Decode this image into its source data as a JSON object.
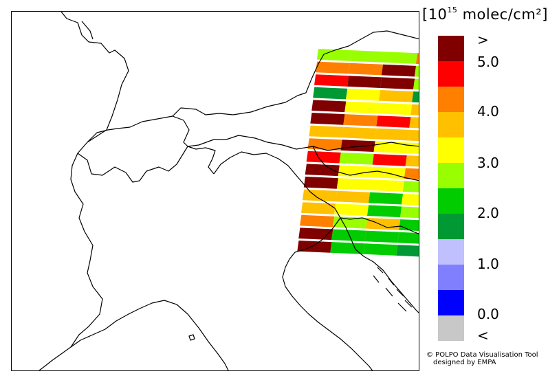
{
  "legend": {
    "unit_prefix": "[10",
    "unit_exp": "15",
    "unit_suffix": " molec/cm²]",
    "ticks": [
      ">",
      "5.0",
      "4.0",
      "3.0",
      "2.0",
      "1.0",
      "0.0",
      "<"
    ],
    "colors": [
      "#800000",
      "#ff0000",
      "#ff8000",
      "#ffc000",
      "#ffff00",
      "#99ff00",
      "#00cc00",
      "#009933",
      "#c0c0ff",
      "#8080ff",
      "#0000ff",
      "#c8c8c8"
    ]
  },
  "footer": {
    "line1": "© POLPO Data Visualisation Tool",
    "line2": "designed by EMPA"
  },
  "swath": {
    "rows": [
      [
        "g3",
        "g3",
        "g3",
        "o",
        "d"
      ],
      [
        "o",
        "o",
        "d",
        "g3",
        "d"
      ],
      [
        "r",
        "d",
        "d",
        "g3",
        "d"
      ],
      [
        "g1",
        "y",
        "or",
        "g1",
        "r"
      ],
      [
        "d",
        "y",
        "y",
        "or",
        "y"
      ],
      [
        "d",
        "o",
        "r",
        "or",
        "y"
      ],
      [
        "or",
        "or",
        "or",
        "or",
        "y"
      ],
      [
        "o",
        "d",
        "y",
        "y",
        "o"
      ],
      [
        "r",
        "g3",
        "r",
        "or",
        "o"
      ],
      [
        "d",
        "y",
        "y",
        "o",
        "o"
      ],
      [
        "d",
        "y",
        "y",
        "g3",
        "y"
      ],
      [
        "or",
        "or",
        "g2",
        "y",
        "y"
      ],
      [
        "or",
        "y",
        "g2",
        "g3",
        "g3"
      ],
      [
        "o",
        "g3",
        "or",
        "g2",
        "g3"
      ],
      [
        "d",
        "g2",
        "g2",
        "g2",
        "lb"
      ],
      [
        "d",
        "g2",
        "g2",
        "g1",
        "lb"
      ]
    ]
  }
}
